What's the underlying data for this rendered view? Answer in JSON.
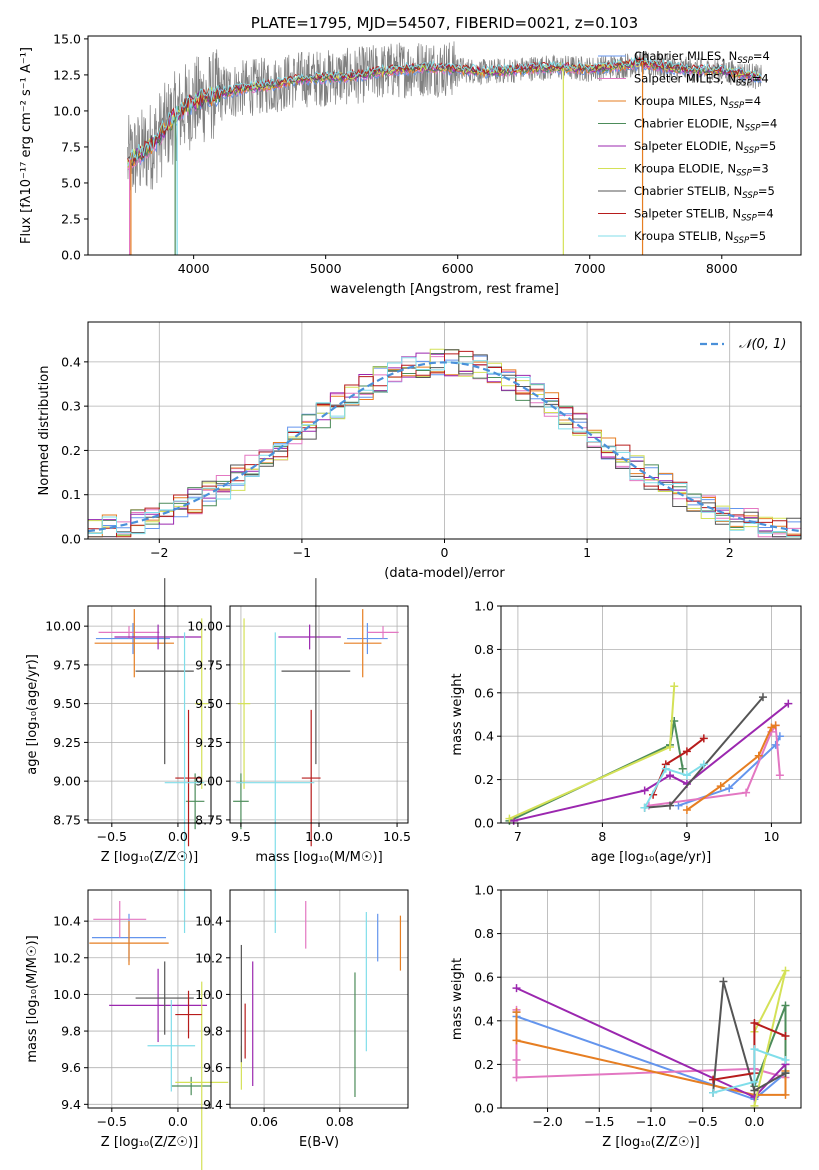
{
  "colors": {
    "Chabrier MILES": "#6495ed",
    "Salpeter MILES": "#e377c2",
    "Kroupa MILES": "#e67e22",
    "Chabrier ELODIE": "#4c8c5a",
    "Salpeter ELODIE": "#9b27af",
    "Kroupa ELODIE": "#d4e157",
    "Chabrier STELIB": "#555555",
    "Salpeter STELIB": "#b71c1c",
    "Kroupa STELIB": "#80deea",
    "data": "#808080",
    "normal": "#4a90d9"
  },
  "chart_data": [
    {
      "type": "line",
      "title": "PLATE=1795, MJD=54507, FIBERID=0021, z=0.103",
      "xlabel": "wavelength [Angstrom, rest frame]",
      "ylabel": "Flux [fλ10⁻¹⁷ erg cm⁻² s⁻¹ A⁻¹]",
      "xlim": [
        3200,
        8600
      ],
      "ylim": [
        0,
        15.2
      ],
      "xticks": [
        "4000",
        "5000",
        "6000",
        "7000",
        "8000"
      ],
      "yticks": [
        "0.0",
        "2.5",
        "5.0",
        "7.5",
        "10.0",
        "12.5",
        "15.0"
      ],
      "legend_position": "right",
      "series": [
        {
          "name": "Chabrier MILES, N_SSP=4",
          "label": "Chabrier MILES, N",
          "sub": "SSP",
          "suffix": "=4"
        },
        {
          "name": "Salpeter MILES, N_SSP=4",
          "label": "Salpeter MILES, N",
          "sub": "SSP",
          "suffix": "=4"
        },
        {
          "name": "Kroupa MILES, N_SSP=4",
          "label": "Kroupa MILES, N",
          "sub": "SSP",
          "suffix": "=4"
        },
        {
          "name": "Chabrier ELODIE, N_SSP=4",
          "label": "Chabrier ELODIE, N",
          "sub": "SSP",
          "suffix": "=4"
        },
        {
          "name": "Salpeter ELODIE, N_SSP=5",
          "label": "Salpeter ELODIE, N",
          "sub": "SSP",
          "suffix": "=5"
        },
        {
          "name": "Kroupa ELODIE, N_SSP=3",
          "label": "Kroupa ELODIE, N",
          "sub": "SSP",
          "suffix": "=3"
        },
        {
          "name": "Chabrier STELIB, N_SSP=5",
          "label": "Chabrier STELIB, N",
          "sub": "SSP",
          "suffix": "=5"
        },
        {
          "name": "Salpeter STELIB, N_SSP=4",
          "label": "Salpeter STELIB, N",
          "sub": "SSP",
          "suffix": "=4"
        },
        {
          "name": "Kroupa STELIB, N_SSP=5",
          "label": "Kroupa STELIB, N",
          "sub": "SSP",
          "suffix": "=5"
        }
      ],
      "continuum": {
        "x": [
          3500,
          3600,
          3700,
          3800,
          3900,
          4000,
          4200,
          4400,
          4600,
          4800,
          5000,
          5200,
          5400,
          5600,
          5800,
          6000,
          6200,
          6400,
          6600,
          6800,
          7000,
          7200,
          7400,
          7600,
          7800,
          8000,
          8200,
          8300
        ],
        "y": [
          6.5,
          7.0,
          7.8,
          9.0,
          10.0,
          10.6,
          11.2,
          11.6,
          11.8,
          12.2,
          12.3,
          12.4,
          12.7,
          12.9,
          13.0,
          12.9,
          12.7,
          12.8,
          13.0,
          13.0,
          12.9,
          13.1,
          13.3,
          13.0,
          12.8,
          12.8,
          12.5,
          12.3
        ]
      }
    },
    {
      "type": "bar",
      "xlabel": "(data-model)/error",
      "ylabel": "Normed distribution",
      "xlim": [
        -2.5,
        2.5
      ],
      "ylim": [
        0,
        0.49
      ],
      "xticks": [
        "−2",
        "−1",
        "0",
        "1",
        "2"
      ],
      "yticks": [
        "0.0",
        "0.1",
        "0.2",
        "0.3",
        "0.4"
      ],
      "legend": "𝒩(0, 1)",
      "legend_position": "top-right",
      "bin_width": 0.1
    },
    {
      "type": "scatter",
      "xlabel": "Z [log₁₀(Z/Z☉)]",
      "ylabel": "age  [log₁₀(age/yr)]",
      "xlim": [
        -0.68,
        0.25
      ],
      "ylim": [
        8.73,
        10.13
      ],
      "xticks": [
        "−0.5",
        "0.0"
      ],
      "yticks": [
        "8.75",
        "9.00",
        "9.25",
        "9.50",
        "9.75",
        "10.00"
      ],
      "points": [
        {
          "model": "Chabrier MILES",
          "x": -0.34,
          "xerr": 0.28,
          "y": 9.92,
          "yerr": 0.1
        },
        {
          "model": "Salpeter MILES",
          "x": -0.37,
          "xerr": 0.23,
          "y": 9.96,
          "yerr": 0.04
        },
        {
          "model": "Kroupa MILES",
          "x": -0.33,
          "xerr": 0.3,
          "y": 9.89,
          "yerr": 0.22
        },
        {
          "model": "Chabrier ELODIE",
          "x": 0.13,
          "xerr": 0.07,
          "y": 8.87,
          "yerr": 0.18
        },
        {
          "model": "Salpeter ELODIE",
          "x": -0.15,
          "xerr": 0.33,
          "y": 9.93,
          "yerr": 0.08
        },
        {
          "model": "Kroupa ELODIE",
          "x": 0.18,
          "xerr": 0.05,
          "y": 9.5,
          "yerr": 0.55
        },
        {
          "model": "Chabrier STELIB",
          "x": -0.1,
          "xerr": 0.22,
          "y": 9.71,
          "yerr": 0.6
        },
        {
          "model": "Salpeter STELIB",
          "x": 0.08,
          "xerr": 0.1,
          "y": 9.02,
          "yerr": 0.44
        },
        {
          "model": "Kroupa STELIB",
          "x": 0.05,
          "xerr": 0.15,
          "y": 8.99,
          "yerr": 0.97
        }
      ]
    },
    {
      "type": "scatter",
      "xlabel": "mass [log₁₀(M/M☉)]",
      "xlim": [
        9.43,
        10.57
      ],
      "ylim": [
        8.73,
        10.13
      ],
      "xticks": [
        "9.5",
        "10.0",
        "10.5"
      ],
      "yticks": [
        "8.75",
        "9.00",
        "9.25",
        "9.50",
        "9.75",
        "10.00"
      ],
      "points": [
        {
          "model": "Chabrier MILES",
          "x": 10.31,
          "xerr": 0.13,
          "y": 9.92,
          "yerr": 0.1
        },
        {
          "model": "Salpeter MILES",
          "x": 10.41,
          "xerr": 0.1,
          "y": 9.96,
          "yerr": 0.04
        },
        {
          "model": "Kroupa MILES",
          "x": 10.28,
          "xerr": 0.12,
          "y": 9.89,
          "yerr": 0.22
        },
        {
          "model": "Chabrier ELODIE",
          "x": 9.5,
          "xerr": 0.05,
          "y": 8.87,
          "yerr": 0.18
        },
        {
          "model": "Salpeter ELODIE",
          "x": 9.94,
          "xerr": 0.2,
          "y": 9.93,
          "yerr": 0.08
        },
        {
          "model": "Kroupa ELODIE",
          "x": 9.52,
          "xerr": 0.04,
          "y": 9.5,
          "yerr": 0.55
        },
        {
          "model": "Chabrier STELIB",
          "x": 9.98,
          "xerr": 0.22,
          "y": 9.71,
          "yerr": 0.6
        },
        {
          "model": "Salpeter STELIB",
          "x": 9.95,
          "xerr": 0.06,
          "y": 9.02,
          "yerr": 0.44
        },
        {
          "model": "Kroupa STELIB",
          "x": 9.72,
          "xerr": 0.25,
          "y": 8.99,
          "yerr": 0.97
        }
      ]
    },
    {
      "type": "line",
      "xlabel": "age  [log₁₀(age/yr)]",
      "ylabel": "mass weight",
      "xlim": [
        6.8,
        10.35
      ],
      "ylim": [
        0,
        1.0
      ],
      "xticks": [
        "7",
        "8",
        "9",
        "10"
      ],
      "yticks": [
        "0.0",
        "0.2",
        "0.4",
        "0.6",
        "0.8",
        "1.0"
      ],
      "series": [
        {
          "model": "Chabrier MILES",
          "x": [
            8.9,
            9.5,
            10.05,
            10.1
          ],
          "y": [
            0.08,
            0.16,
            0.36,
            0.4
          ]
        },
        {
          "model": "Salpeter MILES",
          "x": [
            8.55,
            9.7,
            10.0,
            10.05,
            10.1
          ],
          "y": [
            0.08,
            0.14,
            0.42,
            0.45,
            0.22
          ]
        },
        {
          "model": "Kroupa MILES",
          "x": [
            9.0,
            9.4,
            9.85,
            10.0,
            10.05
          ],
          "y": [
            0.06,
            0.17,
            0.31,
            0.44,
            0.45
          ]
        },
        {
          "model": "Chabrier ELODIE",
          "x": [
            6.9,
            8.8,
            8.85,
            8.95
          ],
          "y": [
            0.01,
            0.36,
            0.47,
            0.25
          ]
        },
        {
          "model": "Salpeter ELODIE",
          "x": [
            6.95,
            8.5,
            8.8,
            9.0,
            10.2
          ],
          "y": [
            0.01,
            0.15,
            0.22,
            0.18,
            0.55
          ]
        },
        {
          "model": "Kroupa ELODIE",
          "x": [
            6.9,
            8.8,
            8.85
          ],
          "y": [
            0.02,
            0.35,
            0.63
          ]
        },
        {
          "model": "Chabrier STELIB",
          "x": [
            8.5,
            8.8,
            9.9
          ],
          "y": [
            0.07,
            0.08,
            0.58
          ]
        },
        {
          "model": "Salpeter STELIB",
          "x": [
            8.6,
            8.75,
            9.0,
            9.2
          ],
          "y": [
            0.13,
            0.27,
            0.33,
            0.39
          ]
        },
        {
          "model": "Kroupa STELIB",
          "x": [
            8.5,
            8.75,
            9.0,
            9.2
          ],
          "y": [
            0.07,
            0.25,
            0.22,
            0.27
          ]
        }
      ]
    },
    {
      "type": "scatter",
      "xlabel": "Z [log₁₀(Z/Z☉)]",
      "ylabel": "mass [log₁₀(M/M☉)]",
      "xlim": [
        -0.68,
        0.25
      ],
      "ylim": [
        9.38,
        10.57
      ],
      "xticks": [
        "−0.5",
        "0.0"
      ],
      "yticks": [
        "9.4",
        "9.6",
        "9.8",
        "10.0",
        "10.2",
        "10.4"
      ],
      "points": [
        {
          "model": "Chabrier MILES",
          "x": -0.37,
          "xerr": 0.28,
          "y": 10.31,
          "yerr": 0.13
        },
        {
          "model": "Salpeter MILES",
          "x": -0.44,
          "xerr": 0.2,
          "y": 10.41,
          "yerr": 0.1
        },
        {
          "model": "Kroupa MILES",
          "x": -0.37,
          "xerr": 0.3,
          "y": 10.28,
          "yerr": 0.12
        },
        {
          "model": "Chabrier ELODIE",
          "x": 0.1,
          "xerr": 0.15,
          "y": 9.5,
          "yerr": 0.05
        },
        {
          "model": "Salpeter ELODIE",
          "x": -0.15,
          "xerr": 0.37,
          "y": 9.94,
          "yerr": 0.2
        },
        {
          "model": "Kroupa ELODIE",
          "x": 0.18,
          "xerr": 0.2,
          "y": 9.52,
          "yerr": 0.55
        },
        {
          "model": "Chabrier STELIB",
          "x": -0.1,
          "xerr": 0.22,
          "y": 9.98,
          "yerr": 0.2
        },
        {
          "model": "Salpeter STELIB",
          "x": 0.08,
          "xerr": 0.1,
          "y": 9.89,
          "yerr": 0.13
        },
        {
          "model": "Kroupa STELIB",
          "x": -0.05,
          "xerr": 0.18,
          "y": 9.72,
          "yerr": 0.25
        }
      ]
    },
    {
      "type": "scatter",
      "xlabel": "E(B-V)",
      "xlim": [
        0.051,
        0.098
      ],
      "ylim": [
        9.38,
        10.57
      ],
      "xticks": [
        "0.06",
        "0.08"
      ],
      "yticks": [
        "9.4",
        "9.6",
        "9.8",
        "10.0",
        "10.2",
        "10.4"
      ],
      "points": [
        {
          "model": "Chabrier MILES",
          "x": 0.09,
          "y": 10.31,
          "yerr": 0.13
        },
        {
          "model": "Salpeter MILES",
          "x": 0.071,
          "y": 10.38,
          "yerr": 0.13
        },
        {
          "model": "Kroupa MILES",
          "x": 0.096,
          "y": 10.28,
          "yerr": 0.15
        },
        {
          "model": "Chabrier ELODIE",
          "x": 0.084,
          "y": 9.78,
          "yerr": 0.34
        },
        {
          "model": "Salpeter ELODIE",
          "x": 0.057,
          "y": 9.84,
          "yerr": 0.34
        },
        {
          "model": "Kroupa ELODIE",
          "x": 0.054,
          "y": 9.6,
          "yerr": 0.12
        },
        {
          "model": "Chabrier STELIB",
          "x": 0.054,
          "y": 9.95,
          "yerr": 0.32
        },
        {
          "model": "Salpeter STELIB",
          "x": 0.055,
          "y": 9.8,
          "yerr": 0.15
        },
        {
          "model": "Kroupa STELIB",
          "x": 0.087,
          "y": 10.07,
          "yerr": 0.38
        }
      ]
    },
    {
      "type": "line",
      "xlabel": "Z [log₁₀(Z/Z☉)]",
      "ylabel": "mass weight",
      "xlim": [
        -2.45,
        0.45
      ],
      "ylim": [
        0,
        1.0
      ],
      "xticks": [
        "−2.0",
        "−1.5",
        "−1.0",
        "−0.5",
        "0.0"
      ],
      "yticks": [
        "0.0",
        "0.2",
        "0.4",
        "0.6",
        "0.8",
        "1.0"
      ],
      "series": [
        {
          "model": "Chabrier MILES",
          "x": [
            -2.3,
            -2.3,
            0.0,
            0.3
          ],
          "y": [
            0.44,
            0.42,
            0.04,
            0.16
          ]
        },
        {
          "model": "Salpeter MILES",
          "x": [
            -2.3,
            -2.3,
            -2.3,
            0.0,
            0.3,
            0.3
          ],
          "y": [
            0.45,
            0.22,
            0.14,
            0.18,
            0.14,
            0.2
          ]
        },
        {
          "model": "Kroupa MILES",
          "x": [
            -2.3,
            -2.3,
            0.0,
            0.3,
            0.3
          ],
          "y": [
            0.44,
            0.31,
            0.06,
            0.06,
            0.17
          ]
        },
        {
          "model": "Chabrier ELODIE",
          "x": [
            0.0,
            0.3,
            0.3
          ],
          "y": [
            0.1,
            0.47,
            0.16
          ]
        },
        {
          "model": "Salpeter ELODIE",
          "x": [
            -2.3,
            0.0,
            0.3
          ],
          "y": [
            0.55,
            0.05,
            0.2
          ]
        },
        {
          "model": "Kroupa ELODIE",
          "x": [
            0.0,
            0.3,
            0.0
          ],
          "y": [
            0.01,
            0.63,
            0.35
          ]
        },
        {
          "model": "Chabrier STELIB",
          "x": [
            -0.4,
            -0.3,
            0.0,
            0.3
          ],
          "y": [
            0.07,
            0.58,
            0.08,
            0.16
          ]
        },
        {
          "model": "Salpeter STELIB",
          "x": [
            -0.4,
            0.0,
            0.0,
            0.3
          ],
          "y": [
            0.13,
            0.16,
            0.39,
            0.33
          ]
        },
        {
          "model": "Kroupa STELIB",
          "x": [
            -0.4,
            0.0,
            0.0,
            0.3
          ],
          "y": [
            0.07,
            0.12,
            0.27,
            0.22
          ]
        }
      ]
    }
  ]
}
